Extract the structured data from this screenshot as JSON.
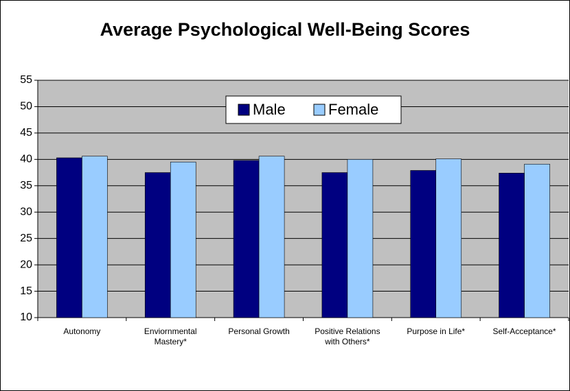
{
  "chart_data": {
    "type": "bar",
    "title": "Average Psychological Well-Being Scores",
    "categories": [
      "Autonomy",
      "Enviornmental Mastery*",
      "Personal Growth",
      "Positive Relations with Others*",
      "Purpose in Life*",
      "Self-Acceptance*"
    ],
    "series": [
      {
        "name": "Male",
        "color": "#000080",
        "values": [
          40.3,
          37.5,
          39.8,
          37.5,
          37.9,
          37.4
        ]
      },
      {
        "name": "Female",
        "color": "#99ccff",
        "values": [
          40.6,
          39.5,
          40.6,
          40.0,
          40.1,
          39.1
        ]
      }
    ],
    "ylim": [
      10,
      55
    ],
    "yticks": [
      10,
      15,
      20,
      25,
      30,
      35,
      40,
      45,
      50,
      55
    ],
    "grid": true,
    "legend": "top",
    "plot_background": "#c0c0c0"
  }
}
